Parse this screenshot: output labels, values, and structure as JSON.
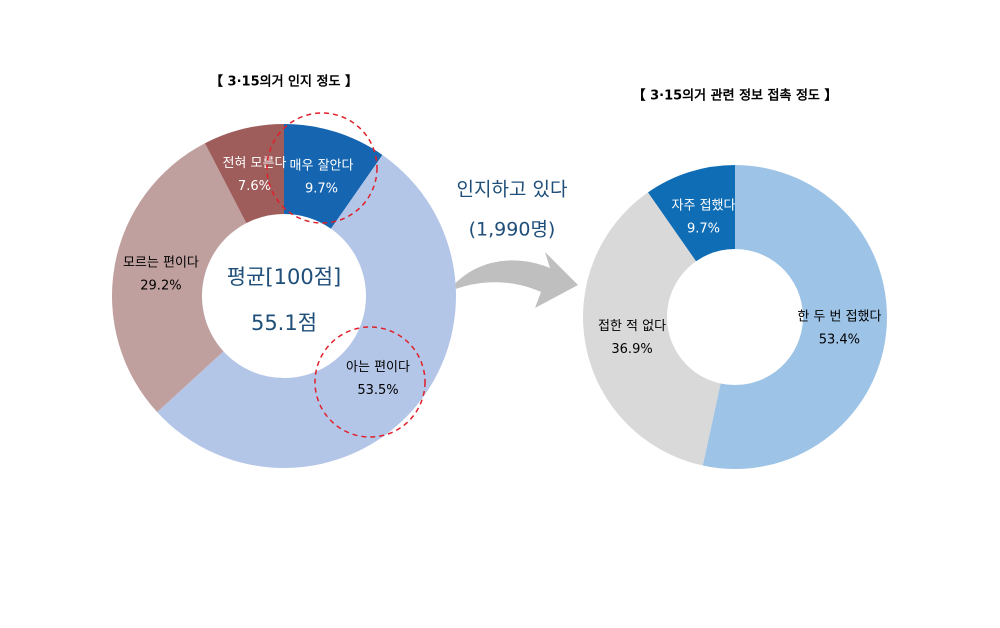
{
  "chart_data": [
    {
      "type": "donut",
      "title": "【 3·15의거 인지 정도 】",
      "categories": [
        "매우 잘안다",
        "아는 편이다",
        "모르는 편이다",
        "전혀 모른다"
      ],
      "values": [
        9.7,
        53.5,
        29.2,
        7.6
      ],
      "value_labels": [
        "9.7%",
        "53.5%",
        "29.2%",
        "7.6%"
      ],
      "colors": [
        "#1565b0",
        "#b4c6e7",
        "#c0a09f",
        "#9e5d5a"
      ],
      "center_text": [
        "평균[100점]",
        "55.1점"
      ]
    },
    {
      "type": "donut",
      "title": "【 3·15의거 관련 정보 접촉 정도 】",
      "categories": [
        "한 두 번 접했다",
        "접한 적 없다",
        "자주 접했다"
      ],
      "values": [
        53.4,
        36.9,
        9.7
      ],
      "value_labels": [
        "53.4%",
        "36.9%",
        "9.7%"
      ],
      "colors": [
        "#9dc3e6",
        "#d9d9d9",
        "#0f6db5"
      ]
    }
  ],
  "connector_text": [
    "인지하고 있다",
    "(1,990명)"
  ]
}
